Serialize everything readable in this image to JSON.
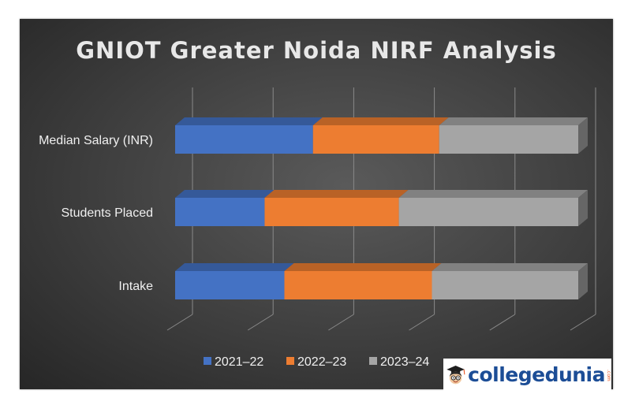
{
  "chart_data": {
    "type": "bar",
    "orientation": "horizontal",
    "stacking": "percent",
    "style": "3d",
    "title": "GNIOT Greater Noida NIRF Analysis",
    "categories": [
      "Median Salary (INR)",
      "Students Placed",
      "Intake"
    ],
    "series": [
      {
        "name": "2021–22",
        "color": "#4472c4",
        "values": [
          34.2,
          22.2,
          27.1
        ]
      },
      {
        "name": "2022–23",
        "color": "#ed7d31",
        "values": [
          31.3,
          33.3,
          36.6
        ]
      },
      {
        "name": "2023–24",
        "color": "#a5a5a5",
        "values": [
          34.5,
          44.5,
          36.3
        ]
      }
    ],
    "xlim": [
      0,
      100
    ],
    "grid": true,
    "legend": "bottom"
  },
  "watermark": {
    "text": "collegedunia",
    "suffix": ".com",
    "text_color": "#1c4d96",
    "suffix_color": "#e8501e",
    "mascot": "student-mascot-icon"
  }
}
